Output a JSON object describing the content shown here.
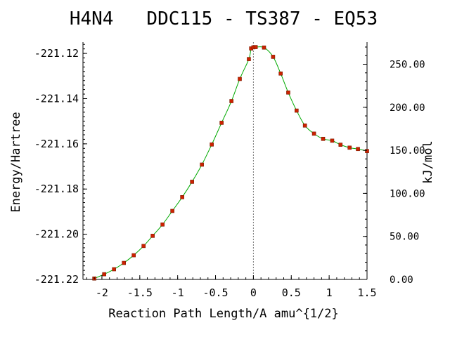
{
  "chart_data": {
    "type": "line",
    "title": "H4N4   DDC115 - TS387 - EQ53",
    "xlabel": "Reaction Path Length/A amu^{1/2}",
    "ylabel": "Energy/Hartree",
    "y2label": "kJ/mol",
    "xlim": [
      -2.25,
      1.5
    ],
    "ylim": [
      -221.22,
      -221.115
    ],
    "y2lim": [
      0.0,
      275.7
    ],
    "x_ticks": [
      -2,
      -1.5,
      -1,
      -0.5,
      0,
      0.5,
      1,
      1.5
    ],
    "x_tick_labels": [
      "-2",
      "-1.5",
      "-1",
      "-0.5",
      "0",
      "0.5",
      "1",
      "1.5"
    ],
    "y_ticks": [
      -221.12,
      -221.14,
      -221.16,
      -221.18,
      -221.2,
      -221.22
    ],
    "y_tick_labels": [
      "-221.12",
      "-221.14",
      "-221.16",
      "-221.18",
      "-221.20",
      "-221.22"
    ],
    "y2_ticks": [
      250,
      200,
      150,
      100,
      50,
      0
    ],
    "y2_tick_labels": [
      "250.00",
      "200.00",
      "150.00",
      "100.00",
      "50.00",
      "0.00"
    ],
    "ts_marker_x": 0.0,
    "grid": false,
    "line_color": "#00aa00",
    "marker_color": "#cc2200",
    "series": [
      {
        "x": [
          -2.1,
          -1.97,
          -1.84,
          -1.71,
          -1.58,
          -1.45,
          -1.33,
          -1.2,
          -1.07,
          -0.94,
          -0.81,
          -0.68,
          -0.55,
          -0.42,
          -0.29,
          -0.18,
          -0.06,
          -0.03,
          0.0,
          0.03,
          0.14,
          0.26,
          0.36,
          0.46,
          0.57,
          0.68,
          0.8,
          0.92,
          1.04,
          1.15,
          1.27,
          1.38,
          1.5
        ],
        "y": [
          -221.2196,
          -221.2177,
          -221.2155,
          -221.2127,
          -221.2093,
          -221.2052,
          -221.2007,
          -221.1957,
          -221.1897,
          -221.1836,
          -221.1768,
          -221.1692,
          -221.1603,
          -221.1507,
          -221.1411,
          -221.1313,
          -221.1225,
          -221.1178,
          -221.1173,
          -221.1172,
          -221.1174,
          -221.1215,
          -221.1289,
          -221.1373,
          -221.1453,
          -221.1519,
          -221.1555,
          -221.1578,
          -221.1586,
          -221.1604,
          -221.1617,
          -221.1623,
          -221.1632
        ]
      }
    ]
  }
}
